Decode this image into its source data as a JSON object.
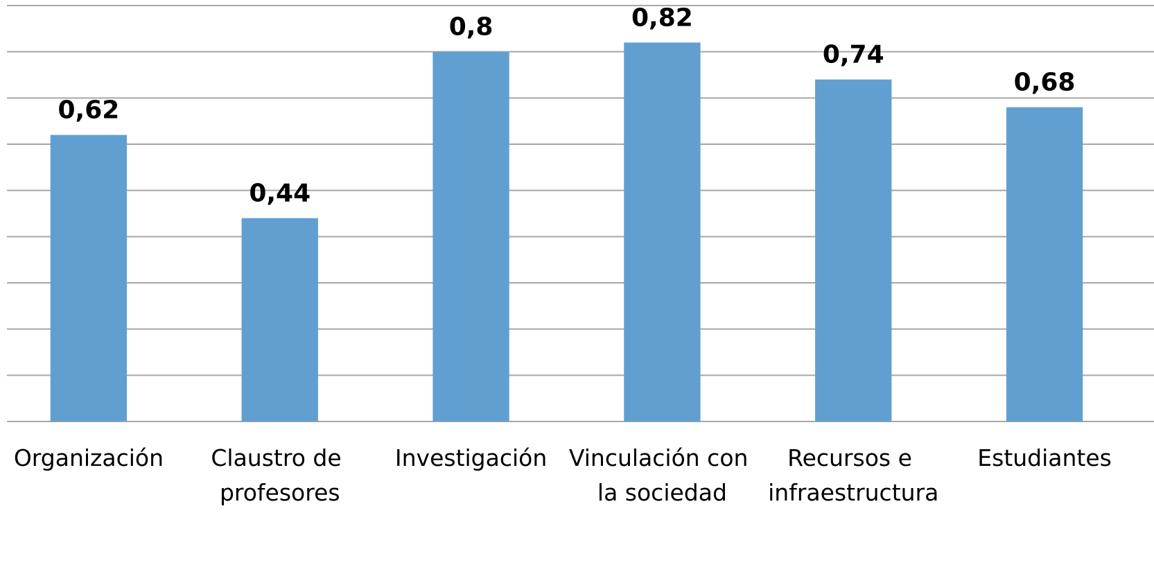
{
  "chart_data": {
    "type": "bar",
    "categories": [
      "Organización",
      "Claustro de profesores",
      "Investigación",
      "Vinculación con la sociedad",
      "Recursos e infraestructura",
      "Estudiantes"
    ],
    "values": [
      0.62,
      0.44,
      0.8,
      0.82,
      0.74,
      0.68
    ],
    "value_labels": [
      "0,62",
      "0,44",
      "0,8",
      "0,82",
      "0,74",
      "0,68"
    ],
    "color": "#629fd1",
    "ylim": [
      0,
      0.9
    ],
    "yticks": [
      0,
      0.1,
      0.2,
      0.3,
      0.4,
      0.5,
      0.6,
      0.7,
      0.8,
      0.9
    ],
    "grid": true
  }
}
